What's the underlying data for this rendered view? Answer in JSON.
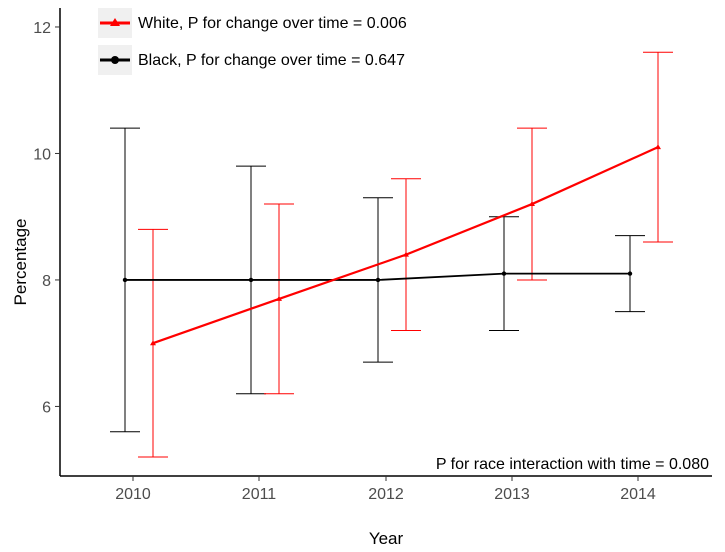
{
  "chart_data": {
    "type": "line",
    "title": "",
    "xlabel": "Year",
    "ylabel": "Percentage",
    "x": [
      "2010",
      "2011",
      "2012",
      "2013",
      "2014"
    ],
    "ylim": [
      4.9,
      12.3
    ],
    "yticks": [
      "6",
      "8",
      "10",
      "12"
    ],
    "grid": false,
    "legend_position": "top-left",
    "series": [
      {
        "name": "White, P for change over time = 0.006",
        "color": "#ff0000",
        "marker": "triangle",
        "values": [
          7.0,
          7.7,
          8.4,
          9.2,
          10.1
        ],
        "lower": [
          5.2,
          6.2,
          7.2,
          8.0,
          8.6
        ],
        "upper": [
          8.8,
          9.2,
          9.6,
          10.4,
          11.6
        ]
      },
      {
        "name": "Black, P for change over time = 0.647",
        "color": "#000000",
        "marker": "circle",
        "values": [
          8.0,
          8.0,
          8.0,
          8.1,
          8.1
        ],
        "lower": [
          5.6,
          6.2,
          6.7,
          7.2,
          7.5
        ],
        "upper": [
          10.4,
          9.8,
          9.3,
          9.0,
          8.7
        ]
      }
    ],
    "annotations": [
      "P for race interaction with time = 0.080"
    ]
  }
}
